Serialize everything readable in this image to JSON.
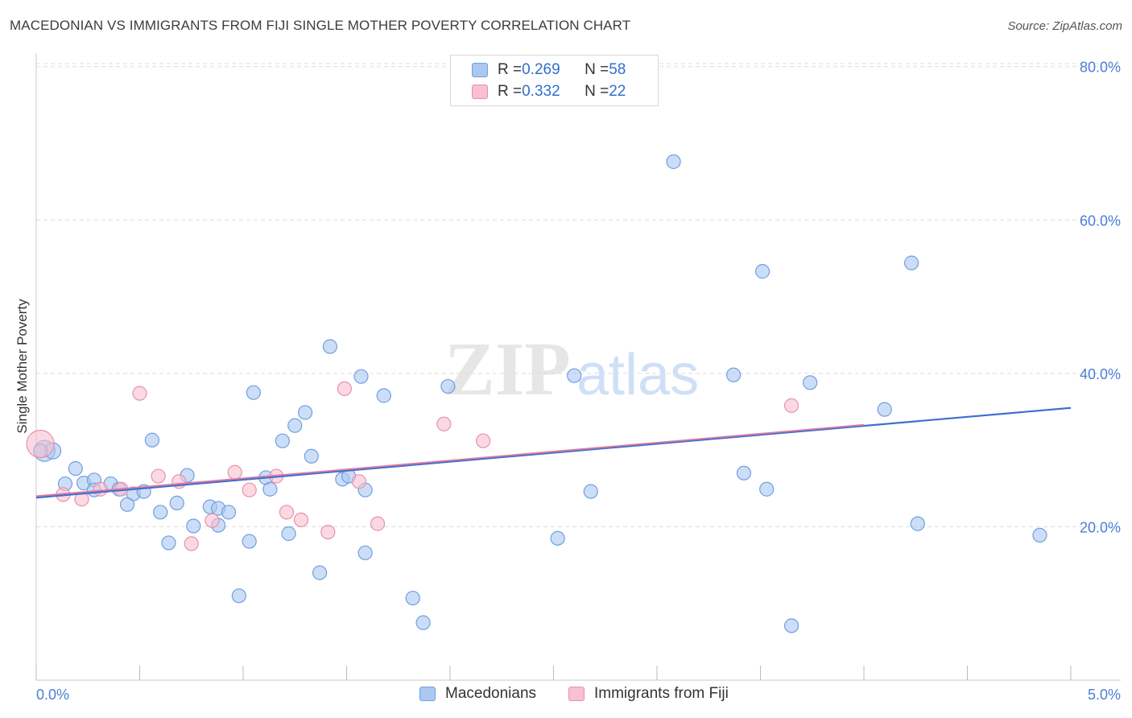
{
  "title": "MACEDONIAN VS IMMIGRANTS FROM FIJI SINGLE MOTHER POVERTY CORRELATION CHART",
  "source": "Source: ZipAtlas.com",
  "legend": {
    "rows": [
      {
        "r_label": "R = ",
        "r_value": "0.269",
        "n_label": "N = ",
        "n_value": "58"
      },
      {
        "r_label": "R = ",
        "r_value": "0.332",
        "n_label": "N = ",
        "n_value": "22"
      }
    ]
  },
  "bottom_legend": [
    "Macedonians",
    "Immigrants from Fiji"
  ],
  "watermark": {
    "zip": "ZIP",
    "atlas": "atlas"
  },
  "colors": {
    "blue_fill": "#aac8f2",
    "blue_stroke": "#6f9fe0",
    "blue_line": "#3f6fd0",
    "pink_fill": "#f8c0d0",
    "pink_stroke": "#e890ac",
    "pink_line": "#e07aa0",
    "grid": "#dcdcdc",
    "tick_text": "#4a7fd4"
  },
  "chart_data": {
    "type": "scatter",
    "title": "MACEDONIAN VS IMMIGRANTS FROM FIJI SINGLE MOTHER POVERTY CORRELATION CHART",
    "xlabel": "",
    "ylabel": "Single Mother Poverty",
    "xlim": [
      0,
      5
    ],
    "ylim": [
      0,
      80
    ],
    "x_tick_labels": [
      "0.0%",
      "5.0%"
    ],
    "y_ticks": [
      20,
      40,
      60,
      80
    ],
    "y_tick_labels": [
      "20.0%",
      "40.0%",
      "60.0%",
      "80.0%"
    ],
    "grid": true,
    "legend_placement": "top-center",
    "series": [
      {
        "name": "Macedonians",
        "r": 0.269,
        "n": 58,
        "trend": {
          "x": [
            0,
            5
          ],
          "y": [
            23.8,
            35.5
          ]
        },
        "points": [
          [
            0.04,
            29.9
          ],
          [
            0.08,
            29.9
          ],
          [
            0.19,
            27.6
          ],
          [
            0.14,
            25.6
          ],
          [
            0.23,
            25.7
          ],
          [
            0.28,
            26.1
          ],
          [
            0.36,
            25.6
          ],
          [
            0.28,
            24.8
          ],
          [
            0.4,
            24.9
          ],
          [
            0.47,
            24.3
          ],
          [
            0.52,
            24.6
          ],
          [
            0.44,
            22.9
          ],
          [
            0.56,
            31.3
          ],
          [
            0.6,
            21.9
          ],
          [
            0.68,
            23.1
          ],
          [
            0.73,
            26.7
          ],
          [
            0.76,
            20.1
          ],
          [
            0.84,
            22.6
          ],
          [
            0.88,
            22.4
          ],
          [
            0.88,
            20.2
          ],
          [
            0.93,
            21.9
          ],
          [
            0.64,
            17.9
          ],
          [
            1.03,
            18.1
          ],
          [
            1.05,
            37.5
          ],
          [
            0.98,
            11.0
          ],
          [
            1.11,
            26.4
          ],
          [
            1.13,
            24.9
          ],
          [
            1.19,
            31.2
          ],
          [
            1.25,
            33.2
          ],
          [
            1.3,
            34.9
          ],
          [
            1.33,
            29.2
          ],
          [
            1.22,
            19.1
          ],
          [
            1.37,
            14.0
          ],
          [
            1.42,
            43.5
          ],
          [
            1.48,
            26.2
          ],
          [
            1.51,
            26.6
          ],
          [
            1.57,
            39.6
          ],
          [
            1.59,
            24.8
          ],
          [
            1.59,
            16.6
          ],
          [
            1.68,
            37.1
          ],
          [
            1.82,
            10.7
          ],
          [
            1.87,
            7.5
          ],
          [
            1.99,
            38.3
          ],
          [
            2.52,
            18.5
          ],
          [
            2.6,
            39.7
          ],
          [
            2.68,
            24.6
          ],
          [
            3.08,
            67.6
          ],
          [
            3.37,
            39.8
          ],
          [
            3.51,
            53.3
          ],
          [
            3.42,
            27.0
          ],
          [
            3.53,
            24.9
          ],
          [
            3.74,
            38.8
          ],
          [
            3.65,
            7.1
          ],
          [
            4.1,
            35.3
          ],
          [
            4.23,
            54.4
          ],
          [
            4.26,
            20.4
          ],
          [
            4.85,
            18.9
          ],
          [
            0.02,
            29.9
          ]
        ]
      },
      {
        "name": "Immigrants from Fiji",
        "r": 0.332,
        "n": 22,
        "trend": {
          "x": [
            0,
            4.0
          ],
          "y": [
            24.0,
            33.3
          ]
        },
        "points": [
          [
            0.02,
            30.8
          ],
          [
            0.13,
            24.2
          ],
          [
            0.22,
            23.6
          ],
          [
            0.31,
            24.9
          ],
          [
            0.41,
            24.9
          ],
          [
            0.5,
            37.4
          ],
          [
            0.59,
            26.6
          ],
          [
            0.69,
            25.9
          ],
          [
            0.75,
            17.8
          ],
          [
            0.85,
            20.8
          ],
          [
            0.96,
            27.1
          ],
          [
            1.03,
            24.8
          ],
          [
            1.16,
            26.6
          ],
          [
            1.21,
            21.9
          ],
          [
            1.28,
            20.9
          ],
          [
            1.41,
            19.3
          ],
          [
            1.49,
            38.0
          ],
          [
            1.56,
            25.9
          ],
          [
            1.65,
            20.4
          ],
          [
            1.97,
            33.4
          ],
          [
            2.16,
            31.2
          ],
          [
            3.65,
            35.8
          ]
        ]
      }
    ]
  }
}
